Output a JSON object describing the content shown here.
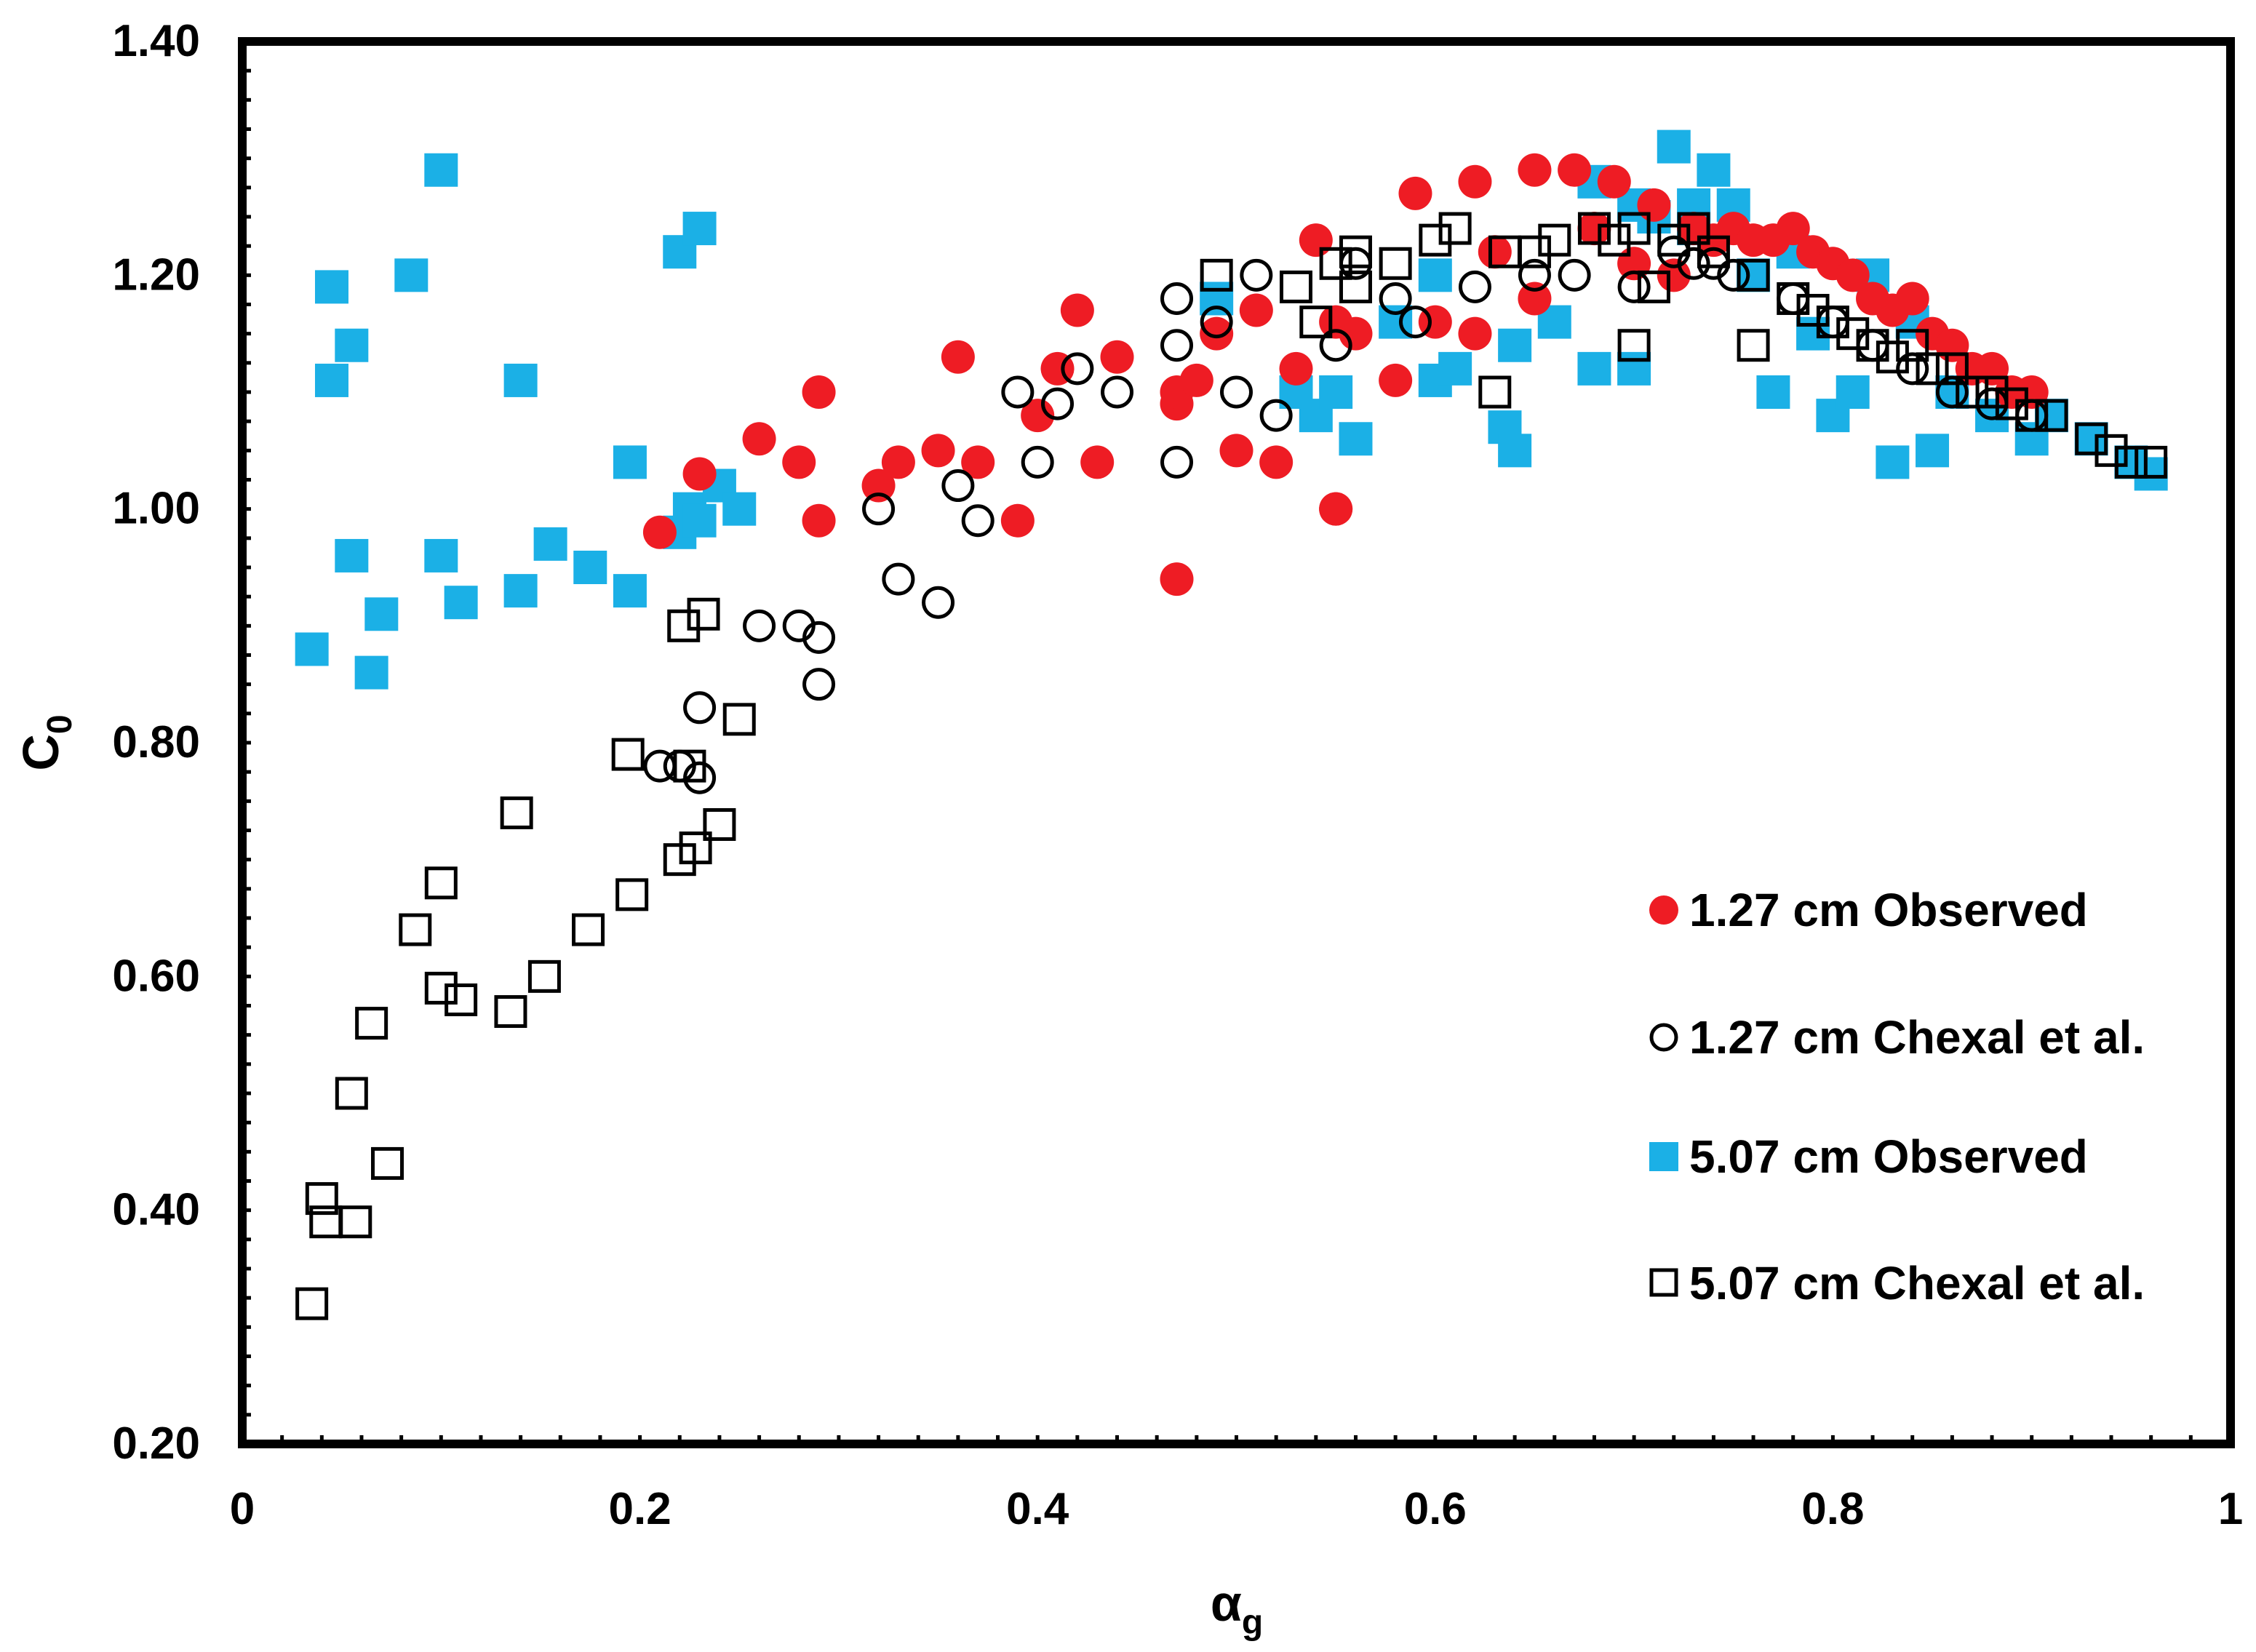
{
  "chart_data": {
    "type": "scatter",
    "title": "",
    "xlabel": "α",
    "xlabel_subscript": "g",
    "ylabel": "C",
    "ylabel_subscript": "0",
    "xlim": [
      0,
      1
    ],
    "ylim": [
      0.2,
      1.4
    ],
    "grid": false,
    "legend_position": "bottom-right",
    "x_ticks": [
      {
        "value": 0,
        "label": "0"
      },
      {
        "value": 0.2,
        "label": "0.2"
      },
      {
        "value": 0.4,
        "label": "0.4"
      },
      {
        "value": 0.6,
        "label": "0.6"
      },
      {
        "value": 0.8,
        "label": "0.8"
      },
      {
        "value": 1,
        "label": "1"
      }
    ],
    "y_ticks": [
      {
        "value": 0.2,
        "label": "0.20"
      },
      {
        "value": 0.4,
        "label": "0.40"
      },
      {
        "value": 0.6,
        "label": "0.60"
      },
      {
        "value": 0.8,
        "label": "0.80"
      },
      {
        "value": 1.0,
        "label": "1.00"
      },
      {
        "value": 1.2,
        "label": "1.20"
      },
      {
        "value": 1.4,
        "label": "1.40"
      }
    ],
    "series": [
      {
        "name": "1.27 cm Observed",
        "marker": "filled-circle",
        "color": "#ee1c24",
        "x": [
          0.21,
          0.23,
          0.26,
          0.28,
          0.29,
          0.29,
          0.32,
          0.33,
          0.35,
          0.36,
          0.37,
          0.39,
          0.4,
          0.41,
          0.42,
          0.43,
          0.44,
          0.47,
          0.47,
          0.48,
          0.49,
          0.5,
          0.51,
          0.52,
          0.53,
          0.54,
          0.55,
          0.55,
          0.56,
          0.58,
          0.59,
          0.6,
          0.62,
          0.62,
          0.63,
          0.65,
          0.65,
          0.67,
          0.68,
          0.69,
          0.7,
          0.71,
          0.72,
          0.73,
          0.74,
          0.75,
          0.76,
          0.77,
          0.78,
          0.79,
          0.8,
          0.81,
          0.82,
          0.83,
          0.84,
          0.85,
          0.86,
          0.87,
          0.88,
          0.89,
          0.9,
          0.47,
          0.55
        ],
        "y": [
          0.98,
          1.03,
          1.06,
          1.04,
          1.1,
          0.99,
          1.02,
          1.04,
          1.05,
          1.13,
          1.04,
          0.99,
          1.08,
          1.12,
          1.17,
          1.04,
          1.13,
          1.09,
          1.1,
          1.11,
          1.15,
          1.05,
          1.17,
          1.04,
          1.12,
          1.23,
          1.16,
          1.0,
          1.15,
          1.11,
          1.27,
          1.16,
          1.15,
          1.28,
          1.22,
          1.29,
          1.18,
          1.29,
          1.24,
          1.28,
          1.21,
          1.26,
          1.2,
          1.24,
          1.23,
          1.24,
          1.23,
          1.23,
          1.24,
          1.22,
          1.21,
          1.2,
          1.18,
          1.17,
          1.18,
          1.15,
          1.14,
          1.12,
          1.12,
          1.1,
          1.1,
          0.94,
          1.0
        ]
      },
      {
        "name": "1.27 cm Chexal et al.",
        "marker": "open-circle",
        "color": "#000000",
        "x": [
          0.21,
          0.22,
          0.23,
          0.23,
          0.26,
          0.28,
          0.29,
          0.29,
          0.32,
          0.33,
          0.35,
          0.36,
          0.37,
          0.39,
          0.4,
          0.41,
          0.42,
          0.44,
          0.47,
          0.47,
          0.47,
          0.49,
          0.5,
          0.51,
          0.52,
          0.55,
          0.56,
          0.58,
          0.59,
          0.62,
          0.65,
          0.67,
          0.7,
          0.72,
          0.73,
          0.74,
          0.75,
          0.78,
          0.8,
          0.82,
          0.84,
          0.86,
          0.88,
          0.9
        ],
        "y": [
          0.78,
          0.78,
          0.77,
          0.83,
          0.9,
          0.9,
          0.89,
          0.85,
          1.0,
          0.94,
          0.92,
          1.02,
          0.99,
          1.1,
          1.04,
          1.09,
          1.12,
          1.1,
          1.04,
          1.14,
          1.18,
          1.16,
          1.1,
          1.2,
          1.08,
          1.14,
          1.21,
          1.18,
          1.16,
          1.19,
          1.2,
          1.2,
          1.19,
          1.22,
          1.21,
          1.21,
          1.2,
          1.18,
          1.16,
          1.14,
          1.12,
          1.1,
          1.09,
          1.08
        ]
      },
      {
        "name": "5.07 cm Observed",
        "marker": "filled-square",
        "color": "#1bb0e6",
        "x": [
          0.035,
          0.045,
          0.045,
          0.055,
          0.055,
          0.065,
          0.07,
          0.085,
          0.1,
          0.1,
          0.11,
          0.14,
          0.14,
          0.155,
          0.175,
          0.195,
          0.195,
          0.22,
          0.22,
          0.225,
          0.23,
          0.23,
          0.24,
          0.25,
          0.49,
          0.53,
          0.54,
          0.55,
          0.56,
          0.58,
          0.6,
          0.6,
          0.61,
          0.635,
          0.64,
          0.64,
          0.66,
          0.68,
          0.68,
          0.7,
          0.7,
          0.71,
          0.72,
          0.73,
          0.73,
          0.74,
          0.75,
          0.76,
          0.77,
          0.78,
          0.79,
          0.8,
          0.81,
          0.82,
          0.83,
          0.84,
          0.85,
          0.86,
          0.88,
          0.9,
          0.91,
          0.93,
          0.95,
          0.96
        ],
        "y": [
          0.88,
          1.19,
          1.11,
          0.96,
          1.14,
          0.86,
          0.91,
          1.2,
          1.29,
          0.96,
          0.92,
          1.11,
          0.93,
          0.97,
          0.95,
          1.04,
          0.93,
          0.98,
          1.22,
          1.0,
          1.24,
          0.99,
          1.02,
          1.0,
          1.18,
          1.1,
          1.08,
          1.1,
          1.06,
          1.16,
          1.2,
          1.11,
          1.12,
          1.07,
          1.14,
          1.05,
          1.16,
          1.28,
          1.12,
          1.26,
          1.12,
          1.25,
          1.31,
          1.26,
          1.24,
          1.29,
          1.26,
          1.2,
          1.1,
          1.22,
          1.15,
          1.08,
          1.1,
          1.2,
          1.04,
          1.16,
          1.05,
          1.1,
          1.08,
          1.06,
          1.08,
          1.06,
          1.04,
          1.03
        ]
      },
      {
        "name": "5.07 cm Chexal et al.",
        "marker": "open-square",
        "color": "#000000",
        "x": [
          0.035,
          0.04,
          0.042,
          0.055,
          0.057,
          0.065,
          0.073,
          0.087,
          0.1,
          0.1,
          0.11,
          0.135,
          0.138,
          0.152,
          0.174,
          0.194,
          0.196,
          0.22,
          0.222,
          0.225,
          0.228,
          0.232,
          0.24,
          0.25,
          0.49,
          0.53,
          0.54,
          0.55,
          0.56,
          0.56,
          0.58,
          0.6,
          0.61,
          0.63,
          0.635,
          0.65,
          0.66,
          0.68,
          0.69,
          0.7,
          0.7,
          0.71,
          0.72,
          0.73,
          0.74,
          0.76,
          0.76,
          0.78,
          0.79,
          0.8,
          0.81,
          0.82,
          0.83,
          0.84,
          0.85,
          0.86,
          0.87,
          0.88,
          0.89,
          0.9,
          0.91,
          0.93,
          0.94,
          0.95,
          0.96
        ],
        "y": [
          0.32,
          0.41,
          0.39,
          0.5,
          0.39,
          0.56,
          0.44,
          0.64,
          0.68,
          0.59,
          0.58,
          0.57,
          0.74,
          0.6,
          0.64,
          0.79,
          0.67,
          0.7,
          0.9,
          0.78,
          0.71,
          0.91,
          0.73,
          0.82,
          1.2,
          1.19,
          1.16,
          1.21,
          1.22,
          1.19,
          1.21,
          1.23,
          1.24,
          1.1,
          1.22,
          1.22,
          1.23,
          1.24,
          1.23,
          1.14,
          1.24,
          1.19,
          1.23,
          1.24,
          1.22,
          1.2,
          1.14,
          1.18,
          1.17,
          1.16,
          1.15,
          1.14,
          1.13,
          1.14,
          1.12,
          1.12,
          1.1,
          1.1,
          1.09,
          1.08,
          1.08,
          1.06,
          1.05,
          1.04,
          1.04
        ]
      }
    ]
  }
}
